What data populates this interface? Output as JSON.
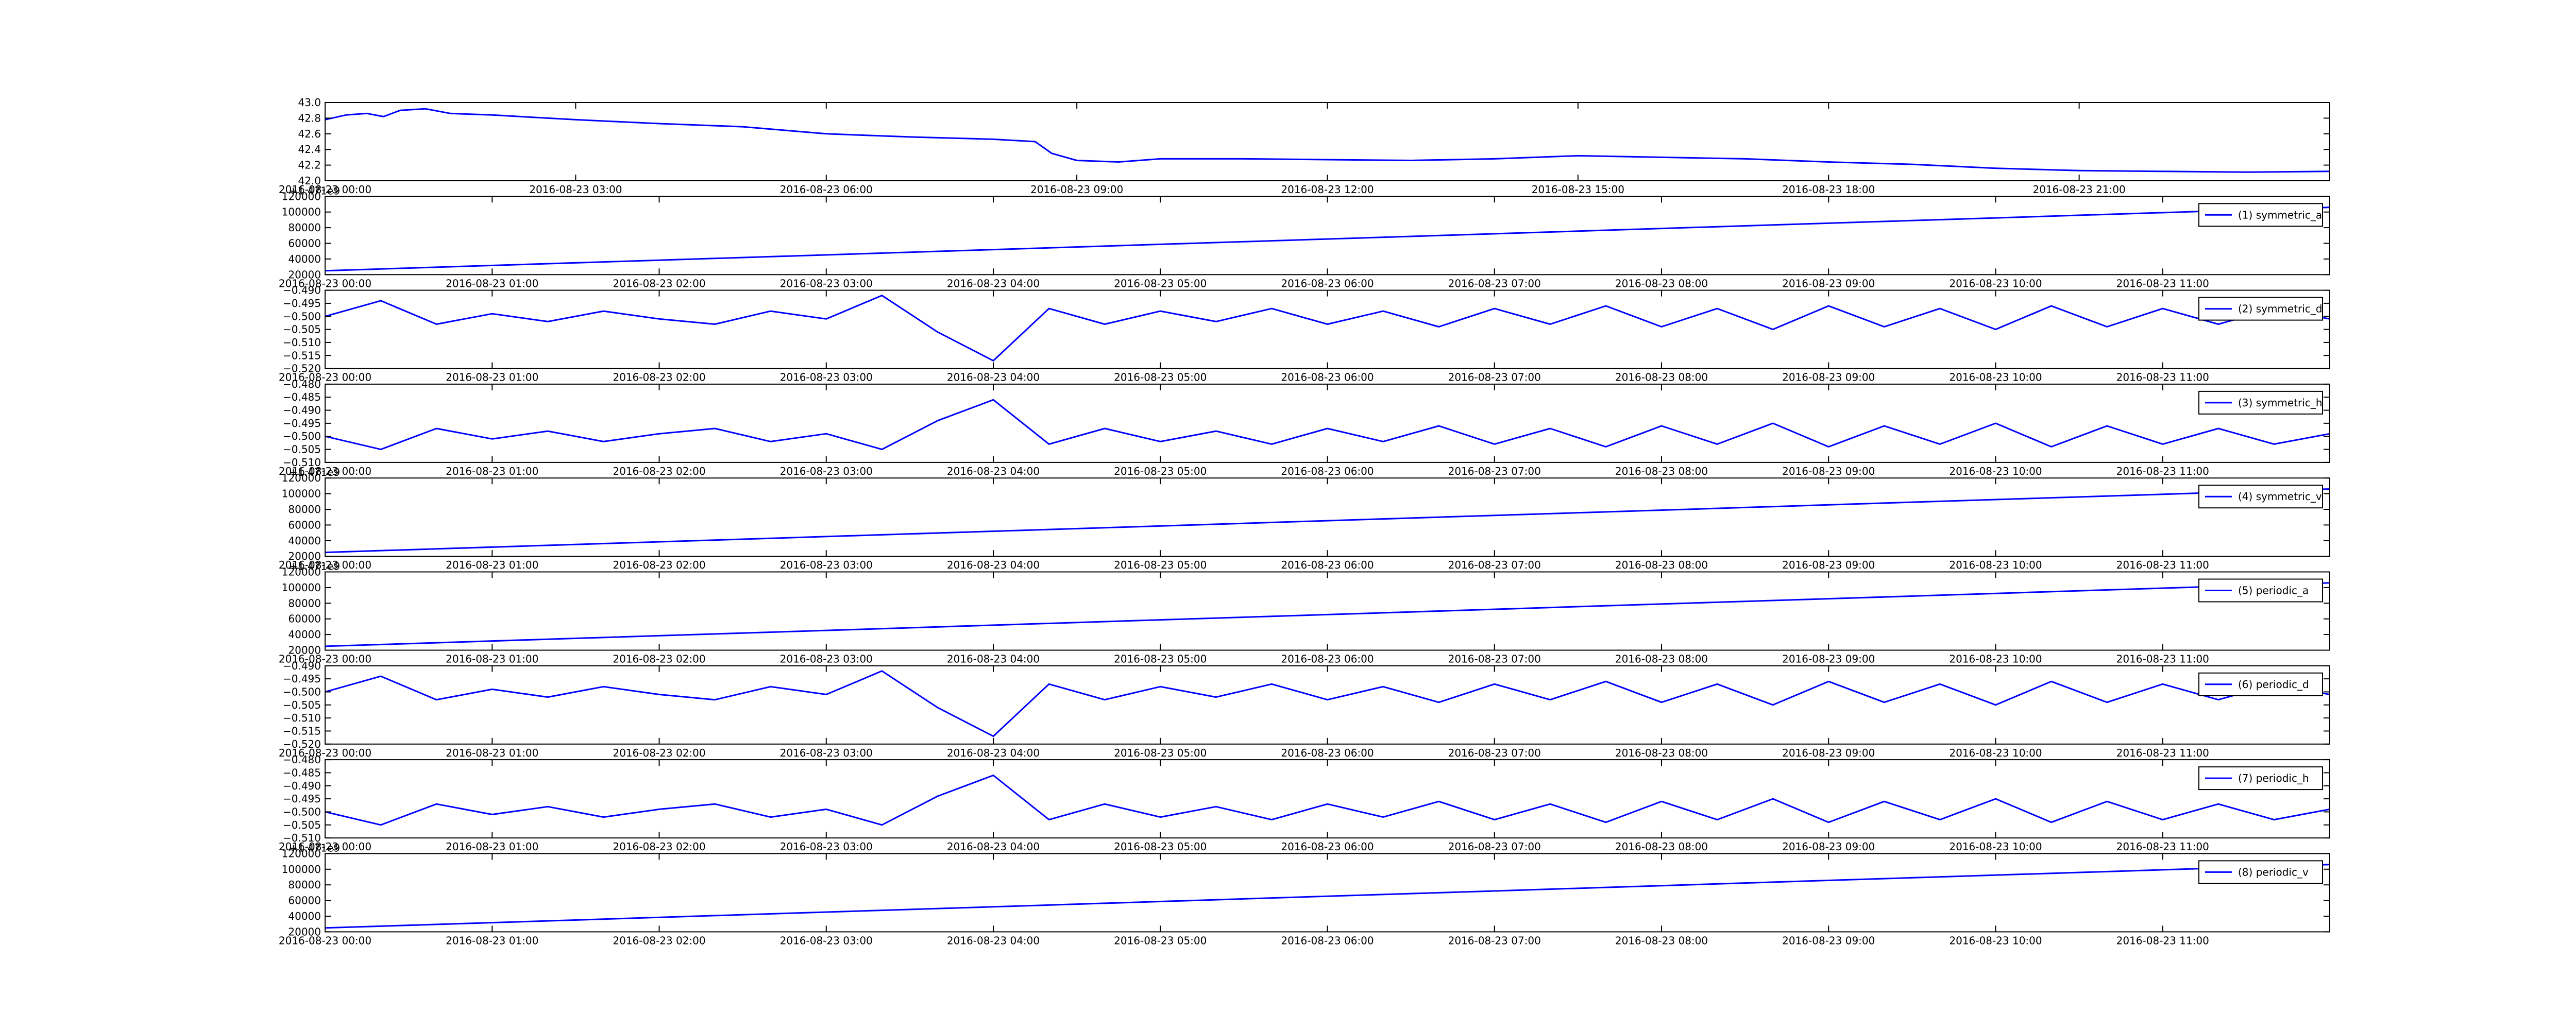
{
  "chart_data": [
    {
      "type": "line",
      "xlim": [
        "2016-08-23 00:00",
        "2016-08-24 00:00"
      ],
      "xticks": [
        "2016-08-23 00:00",
        "2016-08-23 03:00",
        "2016-08-23 06:00",
        "2016-08-23 09:00",
        "2016-08-23 12:00",
        "2016-08-23 15:00",
        "2016-08-23 18:00",
        "2016-08-23 21:00"
      ],
      "ylim": [
        42.0,
        43.0
      ],
      "yticks": [
        {
          "value": 42.0,
          "label": "42.0"
        },
        42.2,
        42.4,
        42.6,
        42.8,
        {
          "value": 43.0,
          "label": "43.0"
        }
      ],
      "x": [
        "2016-08-23 00:00",
        "2016-08-23 00:15",
        "2016-08-23 00:30",
        "2016-08-23 00:42",
        "2016-08-23 00:54",
        "2016-08-23 01:12",
        "2016-08-23 01:30",
        "2016-08-23 02:00",
        "2016-08-23 03:00",
        "2016-08-23 04:00",
        "2016-08-23 05:00",
        "2016-08-23 06:00",
        "2016-08-23 07:00",
        "2016-08-23 08:00",
        "2016-08-23 08:30",
        "2016-08-23 08:42",
        "2016-08-23 09:00",
        "2016-08-23 09:30",
        "2016-08-23 10:00",
        "2016-08-23 11:00",
        "2016-08-23 12:00",
        "2016-08-23 13:00",
        "2016-08-23 14:00",
        "2016-08-23 15:00",
        "2016-08-23 16:00",
        "2016-08-23 17:00",
        "2016-08-23 18:00",
        "2016-08-23 19:00",
        "2016-08-23 20:00",
        "2016-08-23 21:00",
        "2016-08-23 22:00",
        "2016-08-23 23:00",
        "2016-08-24 00:00"
      ],
      "series": [
        {
          "color": "#0000ff",
          "values": [
            42.78,
            42.84,
            42.86,
            42.82,
            42.9,
            42.92,
            42.86,
            42.84,
            42.78,
            42.73,
            42.69,
            42.6,
            42.56,
            42.53,
            42.5,
            42.35,
            42.26,
            42.24,
            42.28,
            42.28,
            42.27,
            42.26,
            42.28,
            42.32,
            42.3,
            42.28,
            42.24,
            42.21,
            42.16,
            42.13,
            42.12,
            42.11,
            42.12
          ]
        }
      ]
    },
    {
      "type": "line",
      "offset_text": "+1.471e9",
      "legend": "upper right",
      "xlim": [
        "2016-08-23 00:00",
        "2016-08-23 12:00"
      ],
      "xticks": [
        "2016-08-23 00:00",
        "2016-08-23 01:00",
        "2016-08-23 02:00",
        "2016-08-23 03:00",
        "2016-08-23 04:00",
        "2016-08-23 05:00",
        "2016-08-23 06:00",
        "2016-08-23 07:00",
        "2016-08-23 08:00",
        "2016-08-23 09:00",
        "2016-08-23 10:00",
        "2016-08-23 11:00"
      ],
      "ylim": [
        20000,
        120000
      ],
      "yticks": [
        20000,
        40000,
        60000,
        80000,
        100000,
        120000
      ],
      "x": [
        "2016-08-23 00:00",
        "2016-08-23 12:00"
      ],
      "series": [
        {
          "name": "(1) symmetric_a",
          "color": "#0000ff",
          "values": [
            25000,
            106000
          ]
        }
      ]
    },
    {
      "type": "line",
      "legend": "upper right",
      "xlim": [
        "2016-08-23 00:00",
        "2016-08-23 12:00"
      ],
      "xticks": [
        "2016-08-23 00:00",
        "2016-08-23 01:00",
        "2016-08-23 02:00",
        "2016-08-23 03:00",
        "2016-08-23 04:00",
        "2016-08-23 05:00",
        "2016-08-23 06:00",
        "2016-08-23 07:00",
        "2016-08-23 08:00",
        "2016-08-23 09:00",
        "2016-08-23 10:00",
        "2016-08-23 11:00"
      ],
      "ylim": [
        -0.52,
        -0.49
      ],
      "yticks": [
        {
          "value": -0.52,
          "label": "−0.520"
        },
        {
          "value": -0.515,
          "label": "−0.515"
        },
        {
          "value": -0.51,
          "label": "−0.510"
        },
        {
          "value": -0.505,
          "label": "−0.505"
        },
        {
          "value": -0.5,
          "label": "−0.500"
        },
        {
          "value": -0.495,
          "label": "−0.495"
        },
        {
          "value": -0.49,
          "label": "−0.490"
        }
      ],
      "x": [
        "2016-08-23 00:00",
        "2016-08-23 00:20",
        "2016-08-23 00:40",
        "2016-08-23 01:00",
        "2016-08-23 01:20",
        "2016-08-23 01:40",
        "2016-08-23 02:00",
        "2016-08-23 02:20",
        "2016-08-23 02:40",
        "2016-08-23 03:00",
        "2016-08-23 03:20",
        "2016-08-23 03:40",
        "2016-08-23 04:00",
        "2016-08-23 04:20",
        "2016-08-23 04:40",
        "2016-08-23 05:00",
        "2016-08-23 05:20",
        "2016-08-23 05:40",
        "2016-08-23 06:00",
        "2016-08-23 06:20",
        "2016-08-23 06:40",
        "2016-08-23 07:00",
        "2016-08-23 07:20",
        "2016-08-23 07:40",
        "2016-08-23 08:00",
        "2016-08-23 08:20",
        "2016-08-23 08:40",
        "2016-08-23 09:00",
        "2016-08-23 09:20",
        "2016-08-23 09:40",
        "2016-08-23 10:00",
        "2016-08-23 10:20",
        "2016-08-23 10:40",
        "2016-08-23 11:00",
        "2016-08-23 11:20",
        "2016-08-23 11:40",
        "2016-08-23 12:00"
      ],
      "series": [
        {
          "name": "(2) symmetric_d",
          "color": "#0000ff",
          "values": [
            -0.5,
            -0.494,
            -0.503,
            -0.499,
            -0.502,
            -0.498,
            -0.501,
            -0.503,
            -0.498,
            -0.501,
            -0.492,
            -0.506,
            -0.517,
            -0.497,
            -0.503,
            -0.498,
            -0.502,
            -0.497,
            -0.503,
            -0.498,
            -0.504,
            -0.497,
            -0.503,
            -0.496,
            -0.504,
            -0.497,
            -0.505,
            -0.496,
            -0.504,
            -0.497,
            -0.505,
            -0.496,
            -0.504,
            -0.497,
            -0.503,
            -0.497,
            -0.501
          ]
        }
      ]
    },
    {
      "type": "line",
      "legend": "upper right",
      "xlim": [
        "2016-08-23 00:00",
        "2016-08-23 12:00"
      ],
      "xticks": [
        "2016-08-23 00:00",
        "2016-08-23 01:00",
        "2016-08-23 02:00",
        "2016-08-23 03:00",
        "2016-08-23 04:00",
        "2016-08-23 05:00",
        "2016-08-23 06:00",
        "2016-08-23 07:00",
        "2016-08-23 08:00",
        "2016-08-23 09:00",
        "2016-08-23 10:00",
        "2016-08-23 11:00"
      ],
      "ylim": [
        -0.51,
        -0.48
      ],
      "yticks": [
        {
          "value": -0.51,
          "label": "−0.510"
        },
        {
          "value": -0.505,
          "label": "−0.505"
        },
        {
          "value": -0.5,
          "label": "−0.500"
        },
        {
          "value": -0.495,
          "label": "−0.495"
        },
        {
          "value": -0.49,
          "label": "−0.490"
        },
        {
          "value": -0.485,
          "label": "−0.485"
        },
        {
          "value": -0.48,
          "label": "−0.480"
        }
      ],
      "x": [
        "2016-08-23 00:00",
        "2016-08-23 00:20",
        "2016-08-23 00:40",
        "2016-08-23 01:00",
        "2016-08-23 01:20",
        "2016-08-23 01:40",
        "2016-08-23 02:00",
        "2016-08-23 02:20",
        "2016-08-23 02:40",
        "2016-08-23 03:00",
        "2016-08-23 03:20",
        "2016-08-23 03:40",
        "2016-08-23 04:00",
        "2016-08-23 04:20",
        "2016-08-23 04:40",
        "2016-08-23 05:00",
        "2016-08-23 05:20",
        "2016-08-23 05:40",
        "2016-08-23 06:00",
        "2016-08-23 06:20",
        "2016-08-23 06:40",
        "2016-08-23 07:00",
        "2016-08-23 07:20",
        "2016-08-23 07:40",
        "2016-08-23 08:00",
        "2016-08-23 08:20",
        "2016-08-23 08:40",
        "2016-08-23 09:00",
        "2016-08-23 09:20",
        "2016-08-23 09:40",
        "2016-08-23 10:00",
        "2016-08-23 10:20",
        "2016-08-23 10:40",
        "2016-08-23 11:00",
        "2016-08-23 11:20",
        "2016-08-23 11:40",
        "2016-08-23 12:00"
      ],
      "series": [
        {
          "name": "(3) symmetric_h",
          "color": "#0000ff",
          "values": [
            -0.5,
            -0.505,
            -0.497,
            -0.501,
            -0.498,
            -0.502,
            -0.499,
            -0.497,
            -0.502,
            -0.499,
            -0.505,
            -0.494,
            -0.486,
            -0.503,
            -0.497,
            -0.502,
            -0.498,
            -0.503,
            -0.497,
            -0.502,
            -0.496,
            -0.503,
            -0.497,
            -0.504,
            -0.496,
            -0.503,
            -0.495,
            -0.504,
            -0.496,
            -0.503,
            -0.495,
            -0.504,
            -0.496,
            -0.503,
            -0.497,
            -0.503,
            -0.499
          ]
        }
      ]
    },
    {
      "type": "line",
      "offset_text": "+1.471e9",
      "legend": "upper right",
      "xlim": [
        "2016-08-23 00:00",
        "2016-08-23 12:00"
      ],
      "xticks": [
        "2016-08-23 00:00",
        "2016-08-23 01:00",
        "2016-08-23 02:00",
        "2016-08-23 03:00",
        "2016-08-23 04:00",
        "2016-08-23 05:00",
        "2016-08-23 06:00",
        "2016-08-23 07:00",
        "2016-08-23 08:00",
        "2016-08-23 09:00",
        "2016-08-23 10:00",
        "2016-08-23 11:00"
      ],
      "ylim": [
        20000,
        120000
      ],
      "yticks": [
        20000,
        40000,
        60000,
        80000,
        100000,
        120000
      ],
      "x": [
        "2016-08-23 00:00",
        "2016-08-23 12:00"
      ],
      "series": [
        {
          "name": "(4) symmetric_v",
          "color": "#0000ff",
          "values": [
            25000,
            106000
          ]
        }
      ]
    },
    {
      "type": "line",
      "offset_text": "+1.471e9",
      "legend": "upper right",
      "xlim": [
        "2016-08-23 00:00",
        "2016-08-23 12:00"
      ],
      "xticks": [
        "2016-08-23 00:00",
        "2016-08-23 01:00",
        "2016-08-23 02:00",
        "2016-08-23 03:00",
        "2016-08-23 04:00",
        "2016-08-23 05:00",
        "2016-08-23 06:00",
        "2016-08-23 07:00",
        "2016-08-23 08:00",
        "2016-08-23 09:00",
        "2016-08-23 10:00",
        "2016-08-23 11:00"
      ],
      "ylim": [
        20000,
        120000
      ],
      "yticks": [
        20000,
        40000,
        60000,
        80000,
        100000,
        120000
      ],
      "x": [
        "2016-08-23 00:00",
        "2016-08-23 12:00"
      ],
      "series": [
        {
          "name": "(5) periodic_a",
          "color": "#0000ff",
          "values": [
            25000,
            106000
          ]
        }
      ]
    },
    {
      "type": "line",
      "legend": "upper right",
      "xlim": [
        "2016-08-23 00:00",
        "2016-08-23 12:00"
      ],
      "xticks": [
        "2016-08-23 00:00",
        "2016-08-23 01:00",
        "2016-08-23 02:00",
        "2016-08-23 03:00",
        "2016-08-23 04:00",
        "2016-08-23 05:00",
        "2016-08-23 06:00",
        "2016-08-23 07:00",
        "2016-08-23 08:00",
        "2016-08-23 09:00",
        "2016-08-23 10:00",
        "2016-08-23 11:00"
      ],
      "ylim": [
        -0.52,
        -0.49
      ],
      "yticks": [
        {
          "value": -0.52,
          "label": "−0.520"
        },
        {
          "value": -0.515,
          "label": "−0.515"
        },
        {
          "value": -0.51,
          "label": "−0.510"
        },
        {
          "value": -0.505,
          "label": "−0.505"
        },
        {
          "value": -0.5,
          "label": "−0.500"
        },
        {
          "value": -0.495,
          "label": "−0.495"
        },
        {
          "value": -0.49,
          "label": "−0.490"
        }
      ],
      "x": [
        "2016-08-23 00:00",
        "2016-08-23 00:20",
        "2016-08-23 00:40",
        "2016-08-23 01:00",
        "2016-08-23 01:20",
        "2016-08-23 01:40",
        "2016-08-23 02:00",
        "2016-08-23 02:20",
        "2016-08-23 02:40",
        "2016-08-23 03:00",
        "2016-08-23 03:20",
        "2016-08-23 03:40",
        "2016-08-23 04:00",
        "2016-08-23 04:20",
        "2016-08-23 04:40",
        "2016-08-23 05:00",
        "2016-08-23 05:20",
        "2016-08-23 05:40",
        "2016-08-23 06:00",
        "2016-08-23 06:20",
        "2016-08-23 06:40",
        "2016-08-23 07:00",
        "2016-08-23 07:20",
        "2016-08-23 07:40",
        "2016-08-23 08:00",
        "2016-08-23 08:20",
        "2016-08-23 08:40",
        "2016-08-23 09:00",
        "2016-08-23 09:20",
        "2016-08-23 09:40",
        "2016-08-23 10:00",
        "2016-08-23 10:20",
        "2016-08-23 10:40",
        "2016-08-23 11:00",
        "2016-08-23 11:20",
        "2016-08-23 11:40",
        "2016-08-23 12:00"
      ],
      "series": [
        {
          "name": "(6) periodic_d",
          "color": "#0000ff",
          "values": [
            -0.5,
            -0.494,
            -0.503,
            -0.499,
            -0.502,
            -0.498,
            -0.501,
            -0.503,
            -0.498,
            -0.501,
            -0.492,
            -0.506,
            -0.517,
            -0.497,
            -0.503,
            -0.498,
            -0.502,
            -0.497,
            -0.503,
            -0.498,
            -0.504,
            -0.497,
            -0.503,
            -0.496,
            -0.504,
            -0.497,
            -0.505,
            -0.496,
            -0.504,
            -0.497,
            -0.505,
            -0.496,
            -0.504,
            -0.497,
            -0.503,
            -0.497,
            -0.501
          ]
        }
      ]
    },
    {
      "type": "line",
      "legend": "upper right",
      "xlim": [
        "2016-08-23 00:00",
        "2016-08-23 12:00"
      ],
      "xticks": [
        "2016-08-23 00:00",
        "2016-08-23 01:00",
        "2016-08-23 02:00",
        "2016-08-23 03:00",
        "2016-08-23 04:00",
        "2016-08-23 05:00",
        "2016-08-23 06:00",
        "2016-08-23 07:00",
        "2016-08-23 08:00",
        "2016-08-23 09:00",
        "2016-08-23 10:00",
        "2016-08-23 11:00"
      ],
      "ylim": [
        -0.51,
        -0.48
      ],
      "yticks": [
        {
          "value": -0.51,
          "label": "−0.510"
        },
        {
          "value": -0.505,
          "label": "−0.505"
        },
        {
          "value": -0.5,
          "label": "−0.500"
        },
        {
          "value": -0.495,
          "label": "−0.495"
        },
        {
          "value": -0.49,
          "label": "−0.490"
        },
        {
          "value": -0.485,
          "label": "−0.485"
        },
        {
          "value": -0.48,
          "label": "−0.480"
        }
      ],
      "x": [
        "2016-08-23 00:00",
        "2016-08-23 00:20",
        "2016-08-23 00:40",
        "2016-08-23 01:00",
        "2016-08-23 01:20",
        "2016-08-23 01:40",
        "2016-08-23 02:00",
        "2016-08-23 02:20",
        "2016-08-23 02:40",
        "2016-08-23 03:00",
        "2016-08-23 03:20",
        "2016-08-23 03:40",
        "2016-08-23 04:00",
        "2016-08-23 04:20",
        "2016-08-23 04:40",
        "2016-08-23 05:00",
        "2016-08-23 05:20",
        "2016-08-23 05:40",
        "2016-08-23 06:00",
        "2016-08-23 06:20",
        "2016-08-23 06:40",
        "2016-08-23 07:00",
        "2016-08-23 07:20",
        "2016-08-23 07:40",
        "2016-08-23 08:00",
        "2016-08-23 08:20",
        "2016-08-23 08:40",
        "2016-08-23 09:00",
        "2016-08-23 09:20",
        "2016-08-23 09:40",
        "2016-08-23 10:00",
        "2016-08-23 10:20",
        "2016-08-23 10:40",
        "2016-08-23 11:00",
        "2016-08-23 11:20",
        "2016-08-23 11:40",
        "2016-08-23 12:00"
      ],
      "series": [
        {
          "name": "(7) periodic_h",
          "color": "#0000ff",
          "values": [
            -0.5,
            -0.505,
            -0.497,
            -0.501,
            -0.498,
            -0.502,
            -0.499,
            -0.497,
            -0.502,
            -0.499,
            -0.505,
            -0.494,
            -0.486,
            -0.503,
            -0.497,
            -0.502,
            -0.498,
            -0.503,
            -0.497,
            -0.502,
            -0.496,
            -0.503,
            -0.497,
            -0.504,
            -0.496,
            -0.503,
            -0.495,
            -0.504,
            -0.496,
            -0.503,
            -0.495,
            -0.504,
            -0.496,
            -0.503,
            -0.497,
            -0.503,
            -0.499
          ]
        }
      ]
    },
    {
      "type": "line",
      "offset_text": "+1.471e9",
      "legend": "upper right",
      "xlim": [
        "2016-08-23 00:00",
        "2016-08-23 12:00"
      ],
      "xticks": [
        "2016-08-23 00:00",
        "2016-08-23 01:00",
        "2016-08-23 02:00",
        "2016-08-23 03:00",
        "2016-08-23 04:00",
        "2016-08-23 05:00",
        "2016-08-23 06:00",
        "2016-08-23 07:00",
        "2016-08-23 08:00",
        "2016-08-23 09:00",
        "2016-08-23 10:00",
        "2016-08-23 11:00"
      ],
      "ylim": [
        20000,
        120000
      ],
      "yticks": [
        20000,
        40000,
        60000,
        80000,
        100000,
        120000
      ],
      "x": [
        "2016-08-23 00:00",
        "2016-08-23 12:00"
      ],
      "series": [
        {
          "name": "(8) periodic_v",
          "color": "#0000ff",
          "values": [
            25000,
            106000
          ]
        }
      ]
    }
  ]
}
